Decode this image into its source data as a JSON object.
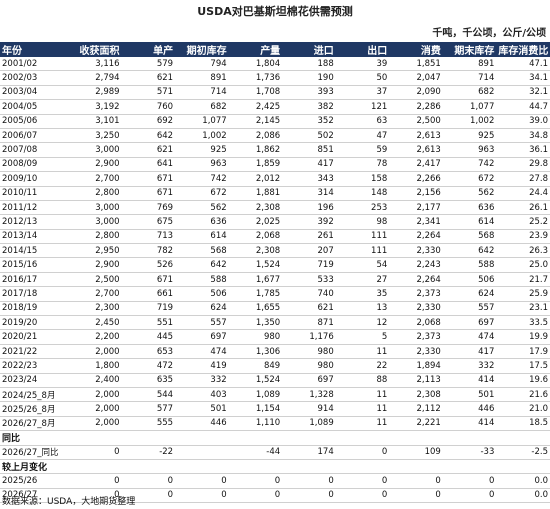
{
  "title": "USDA对巴基斯坦棉花供需预测",
  "units": "千吨，千公顷，公斤/公顷",
  "table": {
    "header": [
      "年份",
      "收获面积",
      "单产",
      "期初库存",
      "产量",
      "进口",
      "出口",
      "消费",
      "期末库存",
      "库存消费比"
    ],
    "rows": [
      [
        "2001/02",
        "3,116",
        "579",
        "794",
        "1,804",
        "188",
        "39",
        "1,851",
        "891",
        "47.1"
      ],
      [
        "2002/03",
        "2,794",
        "621",
        "891",
        "1,736",
        "190",
        "50",
        "2,047",
        "714",
        "34.1"
      ],
      [
        "2003/04",
        "2,989",
        "571",
        "714",
        "1,708",
        "393",
        "37",
        "2,090",
        "682",
        "32.1"
      ],
      [
        "2004/05",
        "3,192",
        "760",
        "682",
        "2,425",
        "382",
        "121",
        "2,286",
        "1,077",
        "44.7"
      ],
      [
        "2005/06",
        "3,101",
        "692",
        "1,077",
        "2,145",
        "352",
        "63",
        "2,500",
        "1,002",
        "39.0"
      ],
      [
        "2006/07",
        "3,250",
        "642",
        "1,002",
        "2,086",
        "502",
        "47",
        "2,613",
        "925",
        "34.8"
      ],
      [
        "2007/08",
        "3,000",
        "621",
        "925",
        "1,862",
        "851",
        "59",
        "2,613",
        "963",
        "36.1"
      ],
      [
        "2008/09",
        "2,900",
        "641",
        "963",
        "1,859",
        "417",
        "78",
        "2,417",
        "742",
        "29.8"
      ],
      [
        "2009/10",
        "2,700",
        "671",
        "742",
        "2,012",
        "343",
        "158",
        "2,266",
        "672",
        "27.8"
      ],
      [
        "2010/11",
        "2,800",
        "671",
        "672",
        "1,881",
        "314",
        "148",
        "2,156",
        "562",
        "24.4"
      ],
      [
        "2011/12",
        "3,000",
        "769",
        "562",
        "2,308",
        "196",
        "253",
        "2,177",
        "636",
        "26.1"
      ],
      [
        "2012/13",
        "3,000",
        "675",
        "636",
        "2,025",
        "392",
        "98",
        "2,341",
        "614",
        "25.2"
      ],
      [
        "2013/14",
        "2,800",
        "713",
        "614",
        "2,068",
        "261",
        "111",
        "2,264",
        "568",
        "23.9"
      ],
      [
        "2014/15",
        "2,950",
        "782",
        "568",
        "2,308",
        "207",
        "111",
        "2,330",
        "642",
        "26.3"
      ],
      [
        "2015/16",
        "2,900",
        "526",
        "642",
        "1,524",
        "719",
        "54",
        "2,243",
        "588",
        "25.0"
      ],
      [
        "2016/17",
        "2,500",
        "671",
        "588",
        "1,677",
        "533",
        "27",
        "2,264",
        "506",
        "21.7"
      ],
      [
        "2017/18",
        "2,700",
        "661",
        "506",
        "1,785",
        "740",
        "35",
        "2,373",
        "624",
        "25.9"
      ],
      [
        "2018/19",
        "2,300",
        "719",
        "624",
        "1,655",
        "621",
        "13",
        "2,330",
        "557",
        "23.1"
      ],
      [
        "2019/20",
        "2,450",
        "551",
        "557",
        "1,350",
        "871",
        "12",
        "2,068",
        "697",
        "33.5"
      ],
      [
        "2020/21",
        "2,200",
        "445",
        "697",
        "980",
        "1,176",
        "5",
        "2,373",
        "474",
        "19.9"
      ],
      [
        "2021/22",
        "2,000",
        "653",
        "474",
        "1,306",
        "980",
        "11",
        "2,330",
        "417",
        "17.9"
      ],
      [
        "2022/23",
        "1,800",
        "472",
        "419",
        "849",
        "980",
        "22",
        "1,894",
        "332",
        "17.5"
      ],
      [
        "2023/24",
        "2,400",
        "635",
        "332",
        "1,524",
        "697",
        "88",
        "2,113",
        "414",
        "19.6"
      ],
      [
        "2024/25_8月",
        "2,000",
        "544",
        "403",
        "1,089",
        "1,328",
        "11",
        "2,308",
        "501",
        "21.6"
      ],
      [
        "2025/26_8月",
        "2,000",
        "577",
        "501",
        "1,154",
        "914",
        "11",
        "2,112",
        "446",
        "21.0"
      ],
      [
        "2026/27_8月",
        "2,000",
        "555",
        "446",
        "1,110",
        "1,089",
        "11",
        "2,221",
        "414",
        "18.5"
      ],
      [
        "同比"
      ],
      [
        "2026/27_同比",
        "0",
        "-22",
        null,
        "-44",
        "174",
        "0",
        "109",
        "-33",
        "-2.5"
      ],
      [
        "较上月变化"
      ],
      [
        "2025/26",
        "0",
        "0",
        "0",
        "0",
        "0",
        "0",
        "0",
        "0",
        "0.0"
      ],
      [
        "2026/27",
        "0",
        "0",
        "0",
        "0",
        "0",
        "0",
        "0",
        "0",
        "0.0"
      ]
    ]
  },
  "footer": "数据来源：USDA，大地期货整理"
}
